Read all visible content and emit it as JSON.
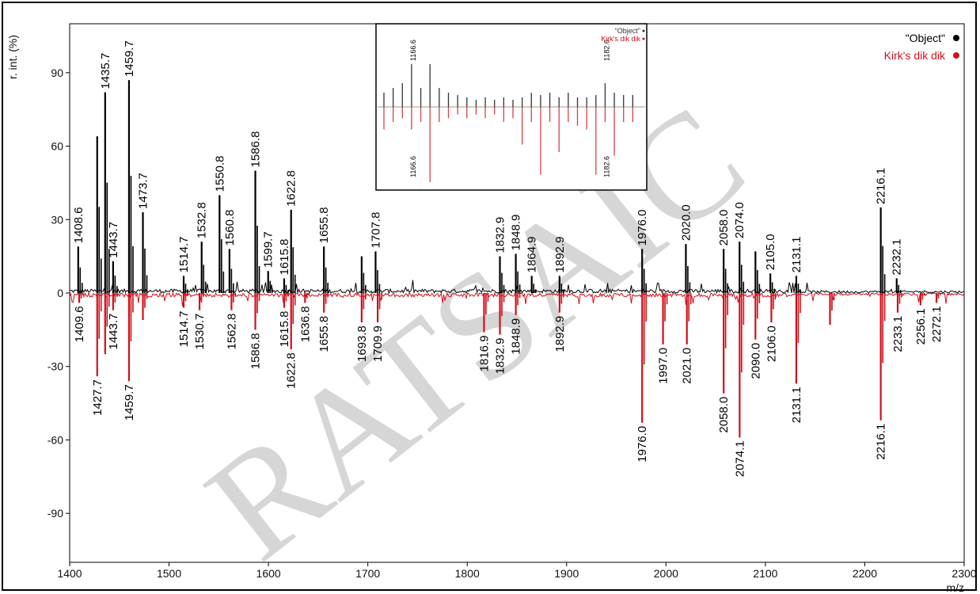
{
  "chart_data": {
    "type": "line",
    "ylabel": "r. int. (%)",
    "xlabel": "m/z",
    "xlim": [
      1400,
      2300
    ],
    "ylim": [
      -110,
      110
    ],
    "x_ticks": [
      1400,
      1500,
      1600,
      1700,
      1800,
      1900,
      2000,
      2100,
      2200,
      2300
    ],
    "y_ticks": [
      90,
      60,
      30,
      0,
      -30,
      -60,
      -90
    ],
    "legend_position": "top-right",
    "series": [
      {
        "name": "\"Object\"",
        "color": "#000000",
        "peaks": [
          {
            "x": 1408.6,
            "y": 19,
            "label": "1408.6"
          },
          {
            "x": 1427.7,
            "y": 64,
            "label": ""
          },
          {
            "x": 1435.7,
            "y": 82,
            "label": "1435.7"
          },
          {
            "x": 1443.7,
            "y": 13,
            "label": "1443.7"
          },
          {
            "x": 1459.7,
            "y": 87,
            "label": "1459.7"
          },
          {
            "x": 1473.7,
            "y": 33,
            "label": "1473.7"
          },
          {
            "x": 1514.7,
            "y": 7,
            "label": "1514.7"
          },
          {
            "x": 1532.8,
            "y": 21,
            "label": "1532.8"
          },
          {
            "x": 1550.8,
            "y": 40,
            "label": "1550.8"
          },
          {
            "x": 1560.8,
            "y": 18,
            "label": "1560.8"
          },
          {
            "x": 1586.8,
            "y": 50,
            "label": "1586.8"
          },
          {
            "x": 1599.7,
            "y": 9,
            "label": "1599.7"
          },
          {
            "x": 1615.8,
            "y": 6,
            "label": "1615.8"
          },
          {
            "x": 1622.8,
            "y": 34,
            "label": "1622.8"
          },
          {
            "x": 1655.8,
            "y": 19,
            "label": "1655.8"
          },
          {
            "x": 1693.8,
            "y": 15,
            "label": ""
          },
          {
            "x": 1707.8,
            "y": 17,
            "label": "1707.8"
          },
          {
            "x": 1832.9,
            "y": 15,
            "label": "1832.9"
          },
          {
            "x": 1848.9,
            "y": 16,
            "label": "1848.9"
          },
          {
            "x": 1864.9,
            "y": 7,
            "label": "1864.9"
          },
          {
            "x": 1892.9,
            "y": 7,
            "label": "1892.9"
          },
          {
            "x": 1976.0,
            "y": 18,
            "label": "1976.0"
          },
          {
            "x": 2020.0,
            "y": 20,
            "label": "2020.0"
          },
          {
            "x": 2058.0,
            "y": 18,
            "label": "2058.0"
          },
          {
            "x": 2074.0,
            "y": 21,
            "label": "2074.0"
          },
          {
            "x": 2090.0,
            "y": 17,
            "label": ""
          },
          {
            "x": 2105.0,
            "y": 8,
            "label": "2105.0"
          },
          {
            "x": 2131.1,
            "y": 7,
            "label": "2131.1"
          },
          {
            "x": 2216.1,
            "y": 35,
            "label": "2216.1"
          },
          {
            "x": 2232.1,
            "y": 6,
            "label": "2232.1"
          }
        ]
      },
      {
        "name": "Kirk's dik dik",
        "color": "#d0101a",
        "peaks": [
          {
            "x": 1409.6,
            "y": -4,
            "label": "1409.6"
          },
          {
            "x": 1427.7,
            "y": -34,
            "label": "1427.7"
          },
          {
            "x": 1435.7,
            "y": -25,
            "label": ""
          },
          {
            "x": 1443.7,
            "y": -7,
            "label": "1443.7"
          },
          {
            "x": 1459.7,
            "y": -36,
            "label": "1459.7"
          },
          {
            "x": 1473.7,
            "y": -11,
            "label": ""
          },
          {
            "x": 1514.7,
            "y": -6,
            "label": "1514.7"
          },
          {
            "x": 1530.7,
            "y": -7,
            "label": "1530.7"
          },
          {
            "x": 1562.8,
            "y": -7,
            "label": "1562.8"
          },
          {
            "x": 1586.8,
            "y": -15,
            "label": "1586.8"
          },
          {
            "x": 1615.8,
            "y": -6,
            "label": "1615.8"
          },
          {
            "x": 1622.8,
            "y": -23,
            "label": "1622.8"
          },
          {
            "x": 1636.8,
            "y": -4,
            "label": "1636.8"
          },
          {
            "x": 1655.8,
            "y": -8,
            "label": "1655.8"
          },
          {
            "x": 1693.8,
            "y": -12,
            "label": "1693.8"
          },
          {
            "x": 1709.9,
            "y": -12,
            "label": "1709.9"
          },
          {
            "x": 1816.9,
            "y": -16,
            "label": "1816.9"
          },
          {
            "x": 1832.9,
            "y": -17,
            "label": "1832.9"
          },
          {
            "x": 1848.9,
            "y": -9,
            "label": "1848.9"
          },
          {
            "x": 1892.9,
            "y": -8,
            "label": "1892.9"
          },
          {
            "x": 1976.0,
            "y": -53,
            "label": "1976.0"
          },
          {
            "x": 1997.0,
            "y": -21,
            "label": "1997.0"
          },
          {
            "x": 2021.0,
            "y": -21,
            "label": "2021.0"
          },
          {
            "x": 2058.0,
            "y": -41,
            "label": "2058.0"
          },
          {
            "x": 2074.1,
            "y": -59,
            "label": "2074.1"
          },
          {
            "x": 2090.0,
            "y": -19,
            "label": "2090.0"
          },
          {
            "x": 2106.0,
            "y": -12,
            "label": "2106.0"
          },
          {
            "x": 2131.1,
            "y": -37,
            "label": "2131.1"
          },
          {
            "x": 2165.0,
            "y": -13,
            "label": ""
          },
          {
            "x": 2216.1,
            "y": -52,
            "label": "2216.1"
          },
          {
            "x": 2233.1,
            "y": -8,
            "label": "2233.1"
          },
          {
            "x": 2256.1,
            "y": -5,
            "label": "2256.1"
          },
          {
            "x": 2272.1,
            "y": -4,
            "label": "2272.1"
          }
        ]
      }
    ],
    "inset": {
      "legend": [
        "\"Object\"",
        "Kirk's dik dik"
      ],
      "top_labels": [
        "1166.6",
        "1182.6"
      ],
      "bottom_labels": [
        "1166.6",
        "1182.6"
      ],
      "top_peaks": [
        0.3,
        0.4,
        0.5,
        0.9,
        0.4,
        0.9,
        0.4,
        0.3,
        0.25,
        0.2,
        0.15,
        0.2,
        0.15,
        0.2,
        0.15,
        0.2,
        0.3,
        0.25,
        0.3,
        0.2,
        0.3,
        0.2,
        0.2,
        0.25,
        0.5,
        0.3,
        0.25,
        0.25
      ],
      "bottom_peaks": [
        0.3,
        0.2,
        0.15,
        0.3,
        0.2,
        1.0,
        0.2,
        0.15,
        0.1,
        0.15,
        0.1,
        0.15,
        0.1,
        0.2,
        0.15,
        0.5,
        0.2,
        0.9,
        0.2,
        0.6,
        0.2,
        0.25,
        0.3,
        0.9,
        0.2,
        0.65,
        0.2,
        0.2
      ]
    },
    "watermark": "RATSAIC"
  }
}
